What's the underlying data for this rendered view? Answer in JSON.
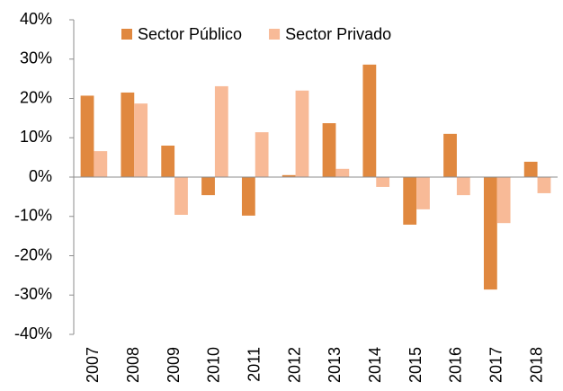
{
  "chart_data": {
    "type": "bar",
    "categories": [
      "2007",
      "2008",
      "2009",
      "2010",
      "2011",
      "2012",
      "2013",
      "2014",
      "2015",
      "2016",
      "2017",
      "2018"
    ],
    "series": [
      {
        "name": "Sector Público",
        "color": "#e0883f",
        "values": [
          20.7,
          21.5,
          8,
          -4.6,
          -9.8,
          0.5,
          13.7,
          28.6,
          -12.1,
          11,
          -28.6,
          3.9
        ]
      },
      {
        "name": "Sector Privado",
        "color": "#f8ba97",
        "values": [
          6.6,
          18.7,
          -9.6,
          23.1,
          11.4,
          22,
          2.1,
          -2.5,
          -8.2,
          -4.6,
          -11.7,
          -4.1
        ]
      }
    ],
    "ylim": [
      -40,
      40
    ],
    "yticks": [
      {
        "value": -40,
        "label": "-40%"
      },
      {
        "value": -30,
        "label": "-30%"
      },
      {
        "value": -20,
        "label": "-20%"
      },
      {
        "value": -10,
        "label": "-10%"
      },
      {
        "value": 0,
        "label": "0%"
      },
      {
        "value": 10,
        "label": "10%"
      },
      {
        "value": 20,
        "label": "20%"
      },
      {
        "value": 30,
        "label": "30%"
      },
      {
        "value": 40,
        "label": "40%"
      }
    ],
    "grid": false,
    "legend": "top"
  }
}
